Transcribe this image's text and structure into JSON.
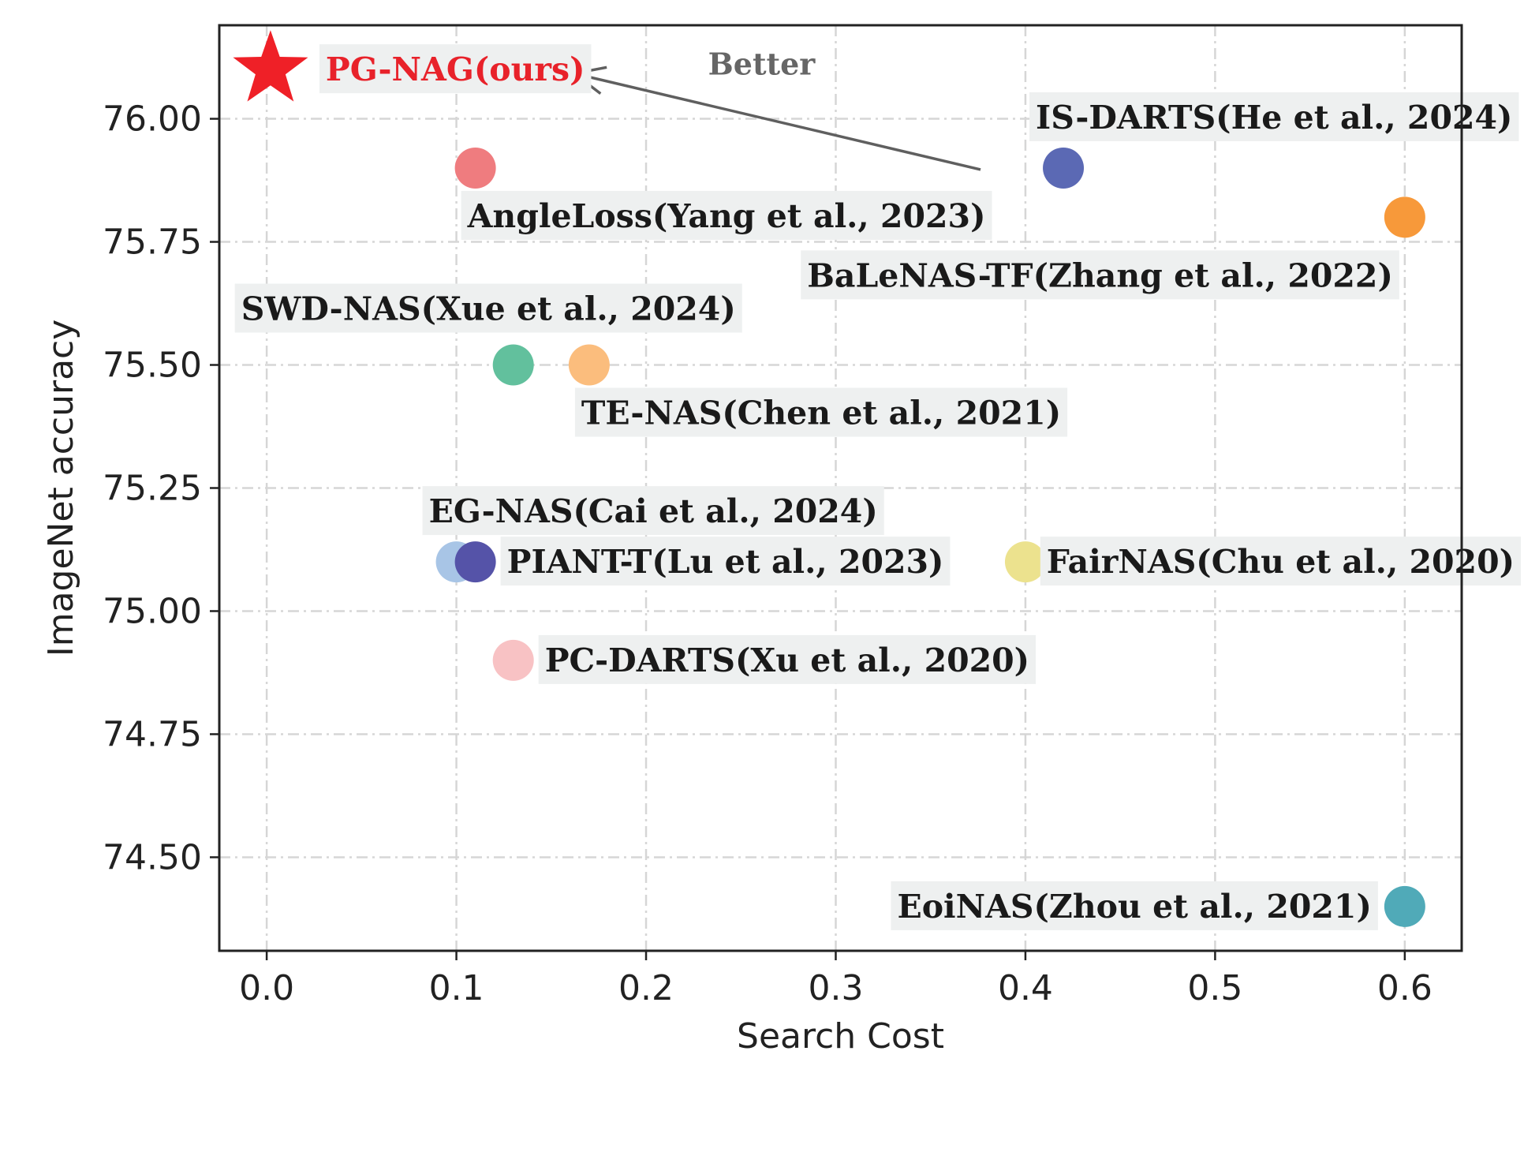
{
  "chart_data": {
    "type": "scatter",
    "xlabel": "Search Cost",
    "ylabel": "ImageNet accuracy",
    "xlim": [
      -0.025,
      0.63
    ],
    "ylim": [
      74.31,
      76.19
    ],
    "xticks": [
      0.0,
      0.1,
      0.2,
      0.3,
      0.4,
      0.5,
      0.6
    ],
    "xtick_labels": [
      "0.0",
      "0.1",
      "0.2",
      "0.3",
      "0.4",
      "0.5",
      "0.6"
    ],
    "yticks": [
      74.5,
      74.75,
      75.0,
      75.25,
      75.5,
      75.75,
      76.0
    ],
    "ytick_labels": [
      "74.50",
      "74.75",
      "75.00",
      "75.25",
      "75.50",
      "75.75",
      "76.00"
    ],
    "grid": true,
    "annotation": "Better",
    "points": [
      {
        "label": "PG-NAG(ours)",
        "x": 0.002,
        "y": 76.1,
        "color": "#ef2027",
        "marker": "star",
        "label_pos": "right"
      },
      {
        "label": "AngleLoss(Yang et al., 2023)",
        "x": 0.11,
        "y": 75.9,
        "color": "#ef7c7f",
        "marker": "circle",
        "label_pos": "below"
      },
      {
        "label": "IS-DARTS(He et al., 2024)",
        "x": 0.42,
        "y": 75.9,
        "color": "#5b69b4",
        "marker": "circle",
        "label_pos": "above"
      },
      {
        "label": "BaLeNAS-TF(Zhang et al., 2022)",
        "x": 0.6,
        "y": 75.8,
        "color": "#f7993a",
        "marker": "circle",
        "label_pos": "below-left"
      },
      {
        "label": "SWD-NAS(Xue et al., 2024)",
        "x": 0.13,
        "y": 75.5,
        "color": "#62c09d",
        "marker": "circle",
        "label_pos": "above-left"
      },
      {
        "label": "TE-NAS(Chen et al., 2021)",
        "x": 0.17,
        "y": 75.5,
        "color": "#fbbd7d",
        "marker": "circle",
        "label_pos": "below"
      },
      {
        "label": "EG-NAS(Cai et al., 2024)",
        "x": 0.1,
        "y": 75.1,
        "color": "#a8c5e6",
        "marker": "circle",
        "label_pos": "above"
      },
      {
        "label": "PIANT-T(Lu et al., 2023)",
        "x": 0.11,
        "y": 75.1,
        "color": "#5553a8",
        "marker": "circle",
        "label_pos": "right"
      },
      {
        "label": "FairNAS(Chu et al., 2020)",
        "x": 0.4,
        "y": 75.1,
        "color": "#ece28e",
        "marker": "circle",
        "label_pos": "right"
      },
      {
        "label": "PC-DARTS(Xu et al., 2020)",
        "x": 0.13,
        "y": 74.9,
        "color": "#f8c2c4",
        "marker": "circle",
        "label_pos": "right"
      },
      {
        "label": "EoiNAS(Zhou et al., 2021)",
        "x": 0.6,
        "y": 74.4,
        "color": "#50aab8",
        "marker": "circle",
        "label_pos": "left"
      }
    ]
  }
}
